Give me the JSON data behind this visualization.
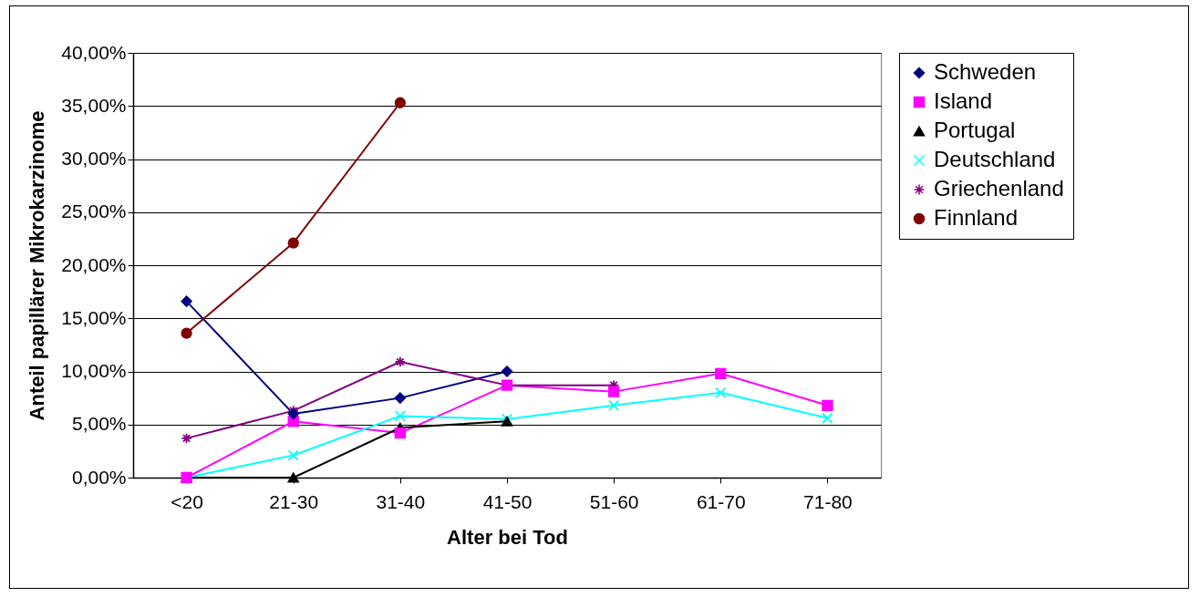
{
  "chart_data": {
    "type": "line",
    "xlabel": "Alter bei Tod",
    "ylabel": "Anteil papillärer Mikrokarzinome",
    "categories": [
      "<20",
      "21-30",
      "31-40",
      "41-50",
      "51-60",
      "61-70",
      "71-80"
    ],
    "series": [
      {
        "name": "Schweden",
        "color": "#000080",
        "marker": "diamond",
        "values": [
          16.6,
          6.0,
          7.5,
          10.0,
          null,
          null,
          null
        ]
      },
      {
        "name": "Island",
        "color": "#ff00ff",
        "marker": "square",
        "values": [
          0,
          5.3,
          4.2,
          8.7,
          8.1,
          9.8,
          6.8
        ]
      },
      {
        "name": "Portugal",
        "color": "#000000",
        "marker": "triangle",
        "values": [
          0,
          0,
          4.7,
          5.3,
          null,
          null,
          null
        ]
      },
      {
        "name": "Deutschland",
        "color": "#00ffff",
        "marker": "cross",
        "values": [
          0,
          2.1,
          5.8,
          5.5,
          6.8,
          8.0,
          5.6
        ]
      },
      {
        "name": "Griechenland",
        "color": "#800080",
        "marker": "cross",
        "values": [
          3.7,
          6.3,
          10.9,
          8.7,
          8.7,
          null,
          null
        ]
      },
      {
        "name": "Finnland",
        "color": "#800000",
        "marker": "circle",
        "values": [
          13.6,
          22.1,
          35.3,
          null,
          null,
          null,
          null
        ]
      }
    ],
    "ylim": [
      0,
      40
    ],
    "yticks": [
      {
        "value": 0,
        "label": "0,00%"
      },
      {
        "value": 5,
        "label": "5,00%"
      },
      {
        "value": 10,
        "label": "10,00%"
      },
      {
        "value": 15,
        "label": "15,00%"
      },
      {
        "value": 20,
        "label": "20,00%"
      },
      {
        "value": 25,
        "label": "25,00%"
      },
      {
        "value": 30,
        "label": "30,00%"
      },
      {
        "value": 35,
        "label": "35,00%"
      },
      {
        "value": 40,
        "label": "40,00%"
      }
    ],
    "grid": "y",
    "legend": "right"
  }
}
